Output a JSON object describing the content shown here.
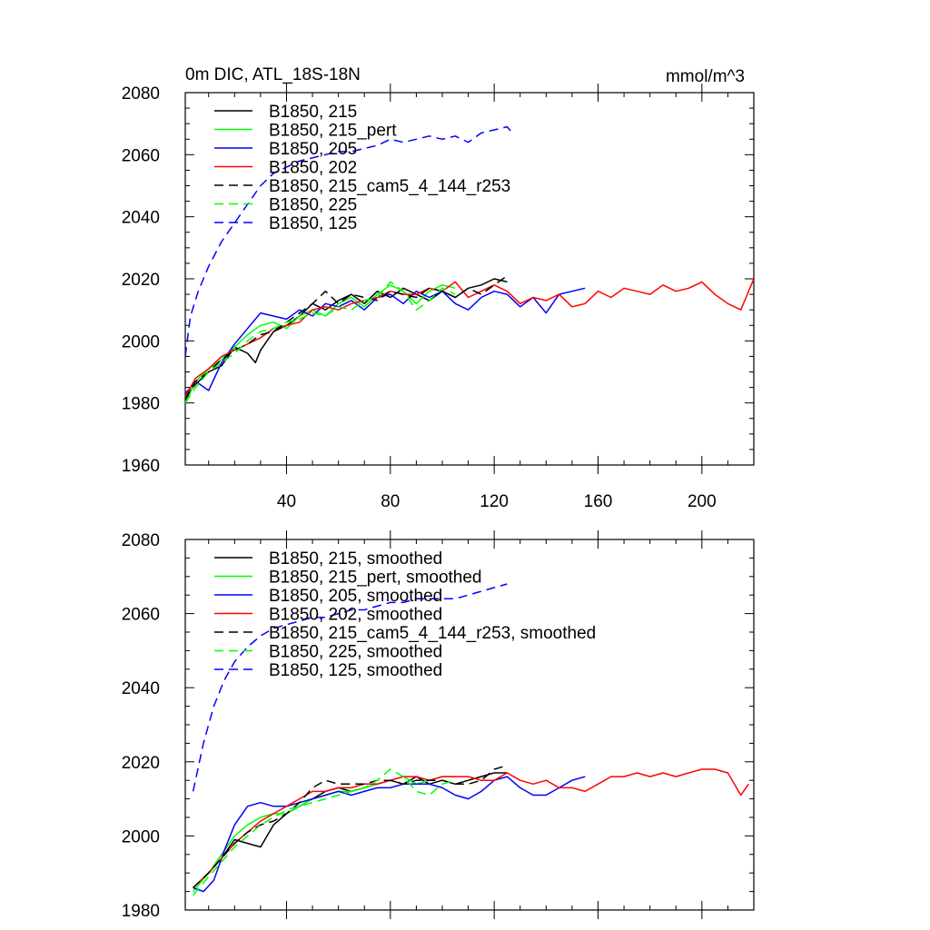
{
  "chart_data": [
    {
      "type": "line",
      "title": "0m DIC, ATL_18S-18N",
      "units_label": "mmol/m^3",
      "xlim": [
        1,
        220
      ],
      "ylim": [
        1960,
        2080
      ],
      "xticks": [
        40,
        80,
        120,
        160,
        200
      ],
      "yticks": [
        1960,
        1980,
        2000,
        2020,
        2040,
        2060,
        2080
      ],
      "xtick_labels": [
        "40",
        "80",
        "120",
        "160",
        "200"
      ],
      "ytick_labels": [
        "1960",
        "1980",
        "2000",
        "2020",
        "2040",
        "2060",
        "2080"
      ],
      "legend_position": "top-left",
      "series": [
        {
          "name": "B1850, 215",
          "color": "#000000",
          "dash": false,
          "x": [
            1,
            5,
            10,
            15,
            20,
            25,
            28,
            30,
            35,
            40,
            45,
            50,
            55,
            60,
            65,
            70,
            75,
            80,
            85,
            90,
            95,
            100,
            105,
            110,
            115,
            120,
            125
          ],
          "y": [
            1982,
            1986,
            1990,
            1992,
            1998,
            1996,
            1993,
            1997,
            2003,
            2005,
            2008,
            2012,
            2010,
            2013,
            2015,
            2012,
            2016,
            2014,
            2017,
            2015,
            2013,
            2016,
            2014,
            2017,
            2018,
            2020,
            2019
          ]
        },
        {
          "name": "B1850, 215_pert",
          "color": "#00ff00",
          "dash": false,
          "x": [
            1,
            5,
            10,
            15,
            20,
            25,
            30,
            35,
            40,
            45,
            50,
            55,
            60,
            65,
            70,
            75,
            80,
            85,
            90,
            95,
            100,
            105
          ],
          "y": [
            1980,
            1987,
            1991,
            1994,
            1998,
            2002,
            2005,
            2006,
            2004,
            2008,
            2010,
            2008,
            2012,
            2014,
            2011,
            2015,
            2018,
            2016,
            2012,
            2016,
            2018,
            2017
          ]
        },
        {
          "name": "B1850, 205",
          "color": "#0000ff",
          "dash": false,
          "x": [
            1,
            5,
            10,
            15,
            20,
            25,
            30,
            35,
            40,
            45,
            50,
            55,
            60,
            65,
            70,
            75,
            80,
            85,
            90,
            95,
            100,
            105,
            110,
            115,
            120,
            125,
            130,
            135,
            140,
            145,
            150,
            155
          ],
          "y": [
            1983,
            1987,
            1984,
            1993,
            1999,
            2004,
            2009,
            2008,
            2007,
            2010,
            2008,
            2012,
            2011,
            2013,
            2010,
            2014,
            2015,
            2012,
            2016,
            2014,
            2016,
            2012,
            2010,
            2014,
            2016,
            2015,
            2011,
            2014,
            2009,
            2015,
            2016,
            2017
          ]
        },
        {
          "name": "B1850, 202",
          "color": "#ff0000",
          "dash": false,
          "x": [
            1,
            5,
            10,
            15,
            20,
            25,
            30,
            35,
            40,
            45,
            50,
            55,
            60,
            65,
            70,
            75,
            80,
            85,
            90,
            95,
            100,
            105,
            110,
            115,
            120,
            125,
            130,
            135,
            140,
            145,
            150,
            155,
            160,
            165,
            170,
            175,
            180,
            185,
            190,
            195,
            200,
            205,
            210,
            215,
            220
          ],
          "y": [
            1982,
            1988,
            1991,
            1995,
            1997,
            1999,
            2001,
            2004,
            2005,
            2006,
            2010,
            2011,
            2010,
            2012,
            2013,
            2014,
            2016,
            2015,
            2015,
            2017,
            2016,
            2019,
            2014,
            2016,
            2018,
            2016,
            2012,
            2014,
            2013,
            2015,
            2011,
            2012,
            2016,
            2014,
            2017,
            2016,
            2015,
            2018,
            2016,
            2017,
            2019,
            2015,
            2012,
            2010,
            2020
          ]
        },
        {
          "name": "B1850, 215_cam5_4_144_r253",
          "color": "#000000",
          "dash": true,
          "x": [
            1,
            5,
            10,
            15,
            20,
            25,
            30,
            35,
            40,
            45,
            50,
            55,
            60,
            65,
            70,
            75,
            80,
            85,
            90,
            95,
            100,
            105,
            110,
            115,
            120,
            125
          ],
          "y": [
            1981,
            1987,
            1990,
            1994,
            1997,
            1999,
            2002,
            2003,
            2006,
            2009,
            2012,
            2016,
            2012,
            2015,
            2014,
            2013,
            2016,
            2015,
            2014,
            2017,
            2016,
            2014,
            2017,
            2015,
            2018,
            2021
          ]
        },
        {
          "name": "B1850, 225",
          "color": "#00ff00",
          "dash": true,
          "x": [
            1,
            5,
            10,
            15,
            20,
            25,
            30,
            35,
            40,
            45,
            50,
            55,
            60,
            65,
            70,
            75,
            80,
            85,
            90,
            95,
            100,
            105
          ],
          "y": [
            1980,
            1985,
            1990,
            1993,
            1996,
            2000,
            2003,
            2004,
            2006,
            2007,
            2009,
            2008,
            2011,
            2010,
            2013,
            2014,
            2019,
            2016,
            2010,
            2013,
            2017,
            2015
          ]
        },
        {
          "name": "B1850, 125",
          "color": "#0000ff",
          "dash": true,
          "x": [
            1,
            3,
            6,
            10,
            15,
            20,
            25,
            30,
            35,
            40,
            45,
            50,
            55,
            60,
            65,
            70,
            75,
            80,
            85,
            90,
            95,
            100,
            105,
            110,
            115,
            120,
            125,
            127
          ],
          "y": [
            1995,
            2008,
            2016,
            2024,
            2032,
            2038,
            2044,
            2050,
            2054,
            2056,
            2058,
            2059,
            2060,
            2061,
            2061,
            2062,
            2063,
            2065,
            2064,
            2065,
            2066,
            2065,
            2066,
            2064,
            2067,
            2068,
            2069,
            2067
          ]
        }
      ]
    },
    {
      "type": "line",
      "xlim": [
        1,
        220
      ],
      "ylim": [
        1980,
        2080
      ],
      "xticks": [
        40,
        80,
        120,
        160,
        200
      ],
      "yticks": [
        1980,
        2000,
        2020,
        2040,
        2060,
        2080
      ],
      "ytick_labels": [
        "1980",
        "2000",
        "2020",
        "2040",
        "2060",
        "2080"
      ],
      "legend_position": "top-left",
      "series": [
        {
          "name": "B1850, 215, smoothed",
          "color": "#000000",
          "dash": false,
          "x": [
            4,
            10,
            15,
            20,
            25,
            30,
            35,
            40,
            45,
            50,
            55,
            60,
            65,
            70,
            75,
            80,
            85,
            90,
            95,
            100,
            105,
            110,
            115,
            120,
            125
          ],
          "y": [
            1986,
            1990,
            1994,
            1999,
            1998,
            1997,
            2003,
            2006,
            2008,
            2010,
            2012,
            2013,
            2012,
            2013,
            2014,
            2015,
            2014,
            2016,
            2014,
            2015,
            2014,
            2015,
            2016,
            2017,
            2017
          ]
        },
        {
          "name": "B1850, 215_pert, smoothed",
          "color": "#00ff00",
          "dash": false,
          "x": [
            4,
            10,
            15,
            20,
            25,
            30,
            35,
            40,
            45,
            50,
            55,
            60,
            65,
            70,
            75,
            80,
            85,
            90,
            95,
            100,
            105
          ],
          "y": [
            1985,
            1990,
            1995,
            2000,
            2003,
            2005,
            2006,
            2006,
            2008,
            2010,
            2011,
            2012,
            2012,
            2013,
            2014,
            2015,
            2016,
            2014,
            2015,
            2016,
            2016
          ]
        },
        {
          "name": "B1850, 205, smoothed",
          "color": "#0000ff",
          "dash": false,
          "x": [
            4,
            8,
            12,
            16,
            20,
            25,
            30,
            35,
            40,
            45,
            50,
            55,
            60,
            65,
            70,
            75,
            80,
            85,
            90,
            95,
            100,
            105,
            110,
            115,
            120,
            125,
            130,
            135,
            140,
            145,
            150,
            155
          ],
          "y": [
            1986,
            1985,
            1988,
            1996,
            2003,
            2008,
            2009,
            2008,
            2008,
            2009,
            2010,
            2011,
            2012,
            2011,
            2012,
            2013,
            2013,
            2014,
            2014,
            2014,
            2013,
            2011,
            2010,
            2012,
            2015,
            2016,
            2013,
            2011,
            2011,
            2013,
            2015,
            2016
          ]
        },
        {
          "name": "B1850, 202, smoothed",
          "color": "#ff0000",
          "dash": false,
          "x": [
            4,
            10,
            15,
            20,
            25,
            30,
            35,
            40,
            45,
            50,
            55,
            60,
            65,
            70,
            75,
            80,
            85,
            90,
            95,
            100,
            105,
            110,
            115,
            120,
            125,
            130,
            135,
            140,
            145,
            150,
            155,
            160,
            165,
            170,
            175,
            180,
            185,
            190,
            195,
            200,
            205,
            210,
            215,
            218
          ],
          "y": [
            1986,
            1990,
            1994,
            1998,
            2001,
            2004,
            2006,
            2008,
            2010,
            2012,
            2012,
            2013,
            2013,
            2014,
            2014,
            2015,
            2016,
            2016,
            2015,
            2016,
            2016,
            2016,
            2015,
            2015,
            2017,
            2015,
            2014,
            2015,
            2013,
            2013,
            2012,
            2014,
            2016,
            2016,
            2017,
            2016,
            2017,
            2016,
            2017,
            2018,
            2018,
            2017,
            2011,
            2014
          ]
        },
        {
          "name": "B1850, 215_cam5_4_144_r253, smoothed",
          "color": "#000000",
          "dash": true,
          "x": [
            4,
            10,
            15,
            20,
            25,
            30,
            35,
            40,
            45,
            50,
            55,
            60,
            65,
            70,
            75,
            80,
            85,
            90,
            95,
            100,
            105,
            110,
            115,
            120,
            125
          ],
          "y": [
            1986,
            1990,
            1994,
            1998,
            2001,
            2003,
            2004,
            2006,
            2009,
            2013,
            2015,
            2014,
            2014,
            2014,
            2015,
            2015,
            2014,
            2015,
            2015,
            2015,
            2014,
            2014,
            2015,
            2018,
            2019
          ]
        },
        {
          "name": "B1850, 225, smoothed",
          "color": "#00ff00",
          "dash": true,
          "x": [
            4,
            10,
            15,
            20,
            25,
            30,
            35,
            40,
            45,
            50,
            55,
            60,
            65,
            70,
            75,
            80,
            85,
            90,
            95,
            100,
            105
          ],
          "y": [
            1984,
            1989,
            1993,
            1997,
            2000,
            2003,
            2005,
            2007,
            2008,
            2009,
            2010,
            2011,
            2012,
            2013,
            2015,
            2018,
            2016,
            2012,
            2011,
            2014,
            2015
          ]
        },
        {
          "name": "B1850, 125, smoothed",
          "color": "#0000ff",
          "dash": true,
          "x": [
            4,
            8,
            12,
            16,
            20,
            25,
            30,
            35,
            40,
            45,
            50,
            55,
            60,
            65,
            70,
            75,
            80,
            85,
            90,
            95,
            100,
            105,
            110,
            115,
            120,
            125
          ],
          "y": [
            2012,
            2025,
            2035,
            2042,
            2047,
            2051,
            2054,
            2056,
            2057,
            2058,
            2059,
            2059,
            2060,
            2061,
            2061,
            2062,
            2063,
            2063,
            2064,
            2064,
            2064,
            2064,
            2065,
            2066,
            2067,
            2068
          ]
        }
      ]
    }
  ]
}
